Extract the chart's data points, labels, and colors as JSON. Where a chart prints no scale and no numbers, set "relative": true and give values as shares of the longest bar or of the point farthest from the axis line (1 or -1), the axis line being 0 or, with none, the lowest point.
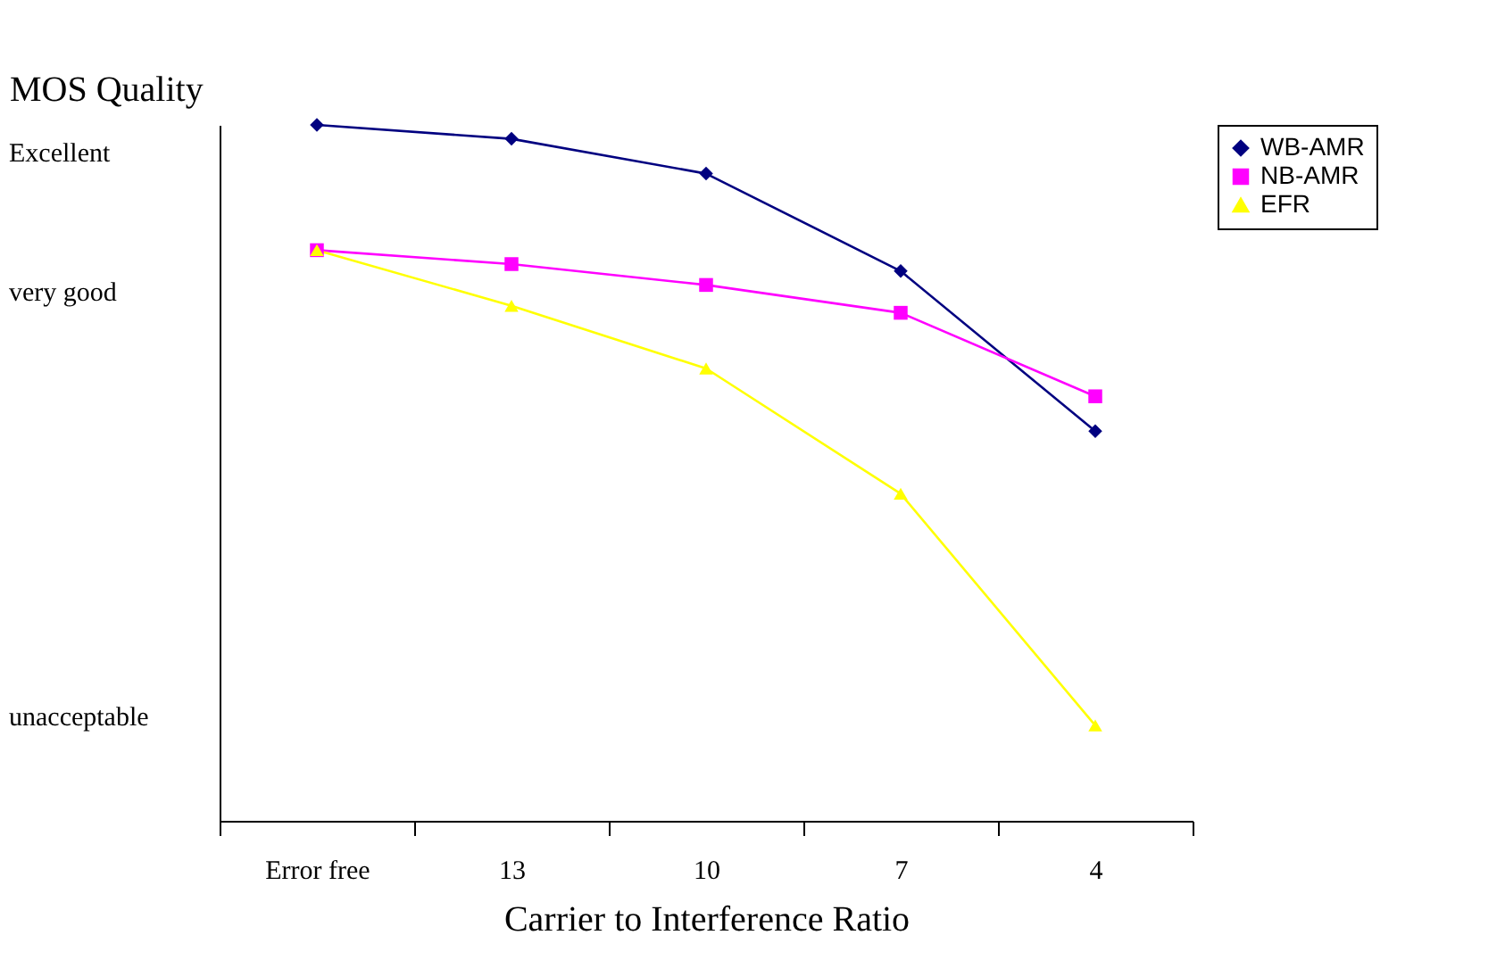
{
  "chart_data": {
    "type": "line",
    "ylabel": "MOS Quality",
    "xlabel": "Carrier to Interference Ratio",
    "relative": true,
    "categories": [
      "Error free",
      "13",
      "10",
      "7",
      "4"
    ],
    "annotations": [
      "Excellent",
      "very good",
      "unacceptable"
    ],
    "legend": "right",
    "series": [
      {
        "name": "WB-AMR",
        "color": "#000080",
        "marker": "diamond",
        "values": [
          1,
          0.98,
          0.93,
          0.79,
          0.56
        ]
      },
      {
        "name": "NB-AMR",
        "color": "#ff00ff",
        "marker": "square",
        "values": [
          0.82,
          0.8,
          0.77,
          0.73,
          0.61
        ]
      },
      {
        "name": "EFR",
        "color": "#ffff00",
        "marker": "triangle",
        "values": [
          0.82,
          0.74,
          0.65,
          0.47,
          0.137
        ]
      }
    ]
  }
}
